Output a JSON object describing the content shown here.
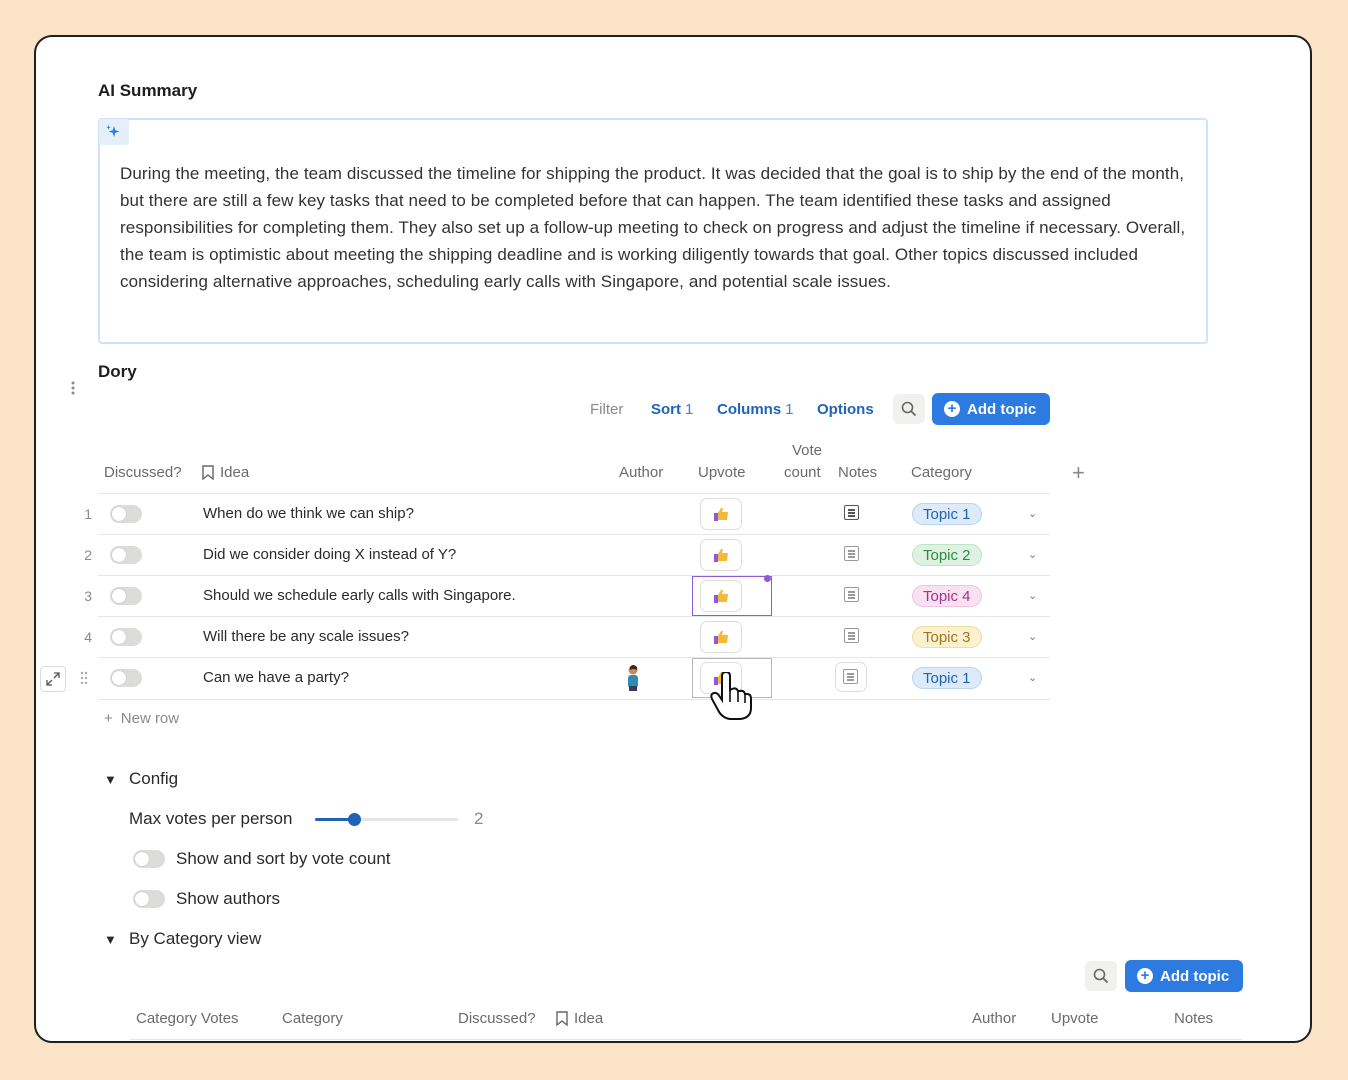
{
  "ai_summary": {
    "title": "AI Summary",
    "text": "During the meeting, the team discussed the timeline for shipping the product. It was decided that the goal is to ship by the end of the month, but there are still a few key tasks that need to be completed before that can happen. The team identified these tasks and assigned responsibilities for completing them. They also set up a follow-up meeting to check on progress and adjust the timeline if necessary. Overall, the team is optimistic about meeting the shipping deadline and is working diligently towards that goal. Other topics discussed included considering alternative approaches, scheduling early calls with Singapore, and potential scale issues."
  },
  "dory": {
    "title": "Dory",
    "toolbar": {
      "filter": "Filter",
      "sort": "Sort",
      "sort_count": "1",
      "columns": "Columns",
      "columns_count": "1",
      "options": "Options",
      "add_topic": "Add topic"
    },
    "columns": {
      "discussed": "Discussed?",
      "idea": "Idea",
      "author": "Author",
      "upvote": "Upvote",
      "vote_count_1": "Vote",
      "vote_count_2": "count",
      "notes": "Notes",
      "category": "Category"
    },
    "rows": [
      {
        "num": "1",
        "idea": "When do we think we can ship?",
        "category": "Topic 1"
      },
      {
        "num": "2",
        "idea": "Did we consider doing X instead of Y?",
        "category": "Topic 2"
      },
      {
        "num": "3",
        "idea": "Should we schedule early calls with Singapore.",
        "category": "Topic 4"
      },
      {
        "num": "4",
        "idea": "Will there be any scale issues?",
        "category": "Topic 3"
      },
      {
        "num": "",
        "idea": "Can we have a party?",
        "category": "Topic 1"
      }
    ],
    "new_row": "New row"
  },
  "config": {
    "title": "Config",
    "max_votes_label": "Max votes per person",
    "max_votes_value": "2",
    "max_votes_fraction": 0.27,
    "show_sort_label": "Show and sort by vote count",
    "show_authors_label": "Show authors"
  },
  "category_view": {
    "title": "By Category view",
    "add_topic": "Add topic",
    "columns": {
      "category_votes": "Category Votes",
      "category": "Category",
      "discussed": "Discussed?",
      "idea": "Idea",
      "author": "Author",
      "upvote": "Upvote",
      "notes": "Notes"
    }
  },
  "colors": {
    "accent": "#2d7be0",
    "topic1_bg": "#ddebf8",
    "topic1_fg": "#1f63b8",
    "topic2_bg": "#dff2e2",
    "topic2_fg": "#2e8a45",
    "topic3_bg": "#fbf0cf",
    "topic3_fg": "#9a7a1a",
    "topic4_bg": "#f8e2f1",
    "topic4_fg": "#a3338a"
  }
}
